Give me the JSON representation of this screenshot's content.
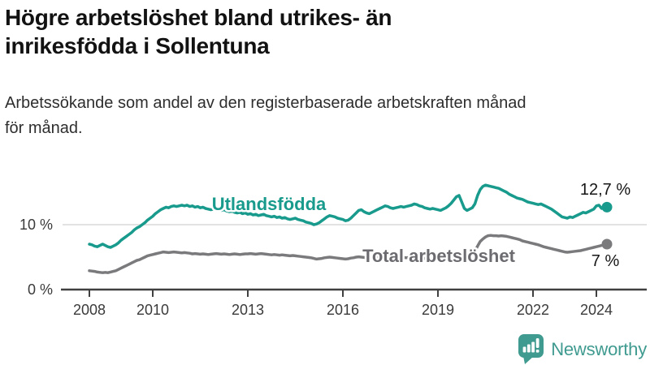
{
  "header": {
    "title_lines": [
      "Högre arbetslöshet bland utrikes- än",
      "inrikesfödda i Sollentuna"
    ],
    "subtitle_lines": [
      "Arbetssökande som andel av den registerbaserade arbetskraften månad",
      "för månad."
    ]
  },
  "footer": {
    "brand": "Newsworthy"
  },
  "colors": {
    "teal": "#189a8c",
    "gray": "#7a7a7d",
    "gray_label": "#6b6b70",
    "brand_teal": "#3f9a8f"
  },
  "chart_data": {
    "type": "line",
    "title": "Högre arbetslöshet bland utrikes- än inrikesfödda i Sollentuna",
    "subtitle": "Arbetssökande som andel av den registerbaserade arbetskraften månad för månad.",
    "xlabel": "",
    "ylabel": "",
    "x_unit": "year-month",
    "x_start_year": 2008,
    "x_step_months": 1,
    "xlim": [
      2008,
      2024.4
    ],
    "ylim": [
      0,
      19
    ],
    "grid_values": [
      10
    ],
    "x_ticks": [
      {
        "year": 2008,
        "label": "2008"
      },
      {
        "year": 2010,
        "label": "2010"
      },
      {
        "year": 2013,
        "label": "2013"
      },
      {
        "year": 2016,
        "label": "2016"
      },
      {
        "year": 2019,
        "label": "2019"
      },
      {
        "year": 2022,
        "label": "2022"
      },
      {
        "year": 2024,
        "label": "2024"
      }
    ],
    "y_ticks": [
      {
        "value": 0,
        "label": "0 %"
      },
      {
        "value": 10,
        "label": "10 %"
      }
    ],
    "series": [
      {
        "id": "utlandsfodda",
        "name": "Utlandsfödda",
        "color": "#189a8c",
        "label_color": "#189a8c",
        "end_value": 12.7,
        "end_label": "12,7 %",
        "values": [
          7.0,
          6.9,
          6.7,
          6.6,
          6.8,
          7.0,
          6.8,
          6.6,
          6.5,
          6.7,
          6.9,
          7.2,
          7.6,
          7.9,
          8.2,
          8.5,
          8.8,
          9.2,
          9.5,
          9.7,
          10.0,
          10.3,
          10.7,
          11.0,
          11.3,
          11.7,
          12.0,
          12.3,
          12.5,
          12.7,
          12.6,
          12.8,
          12.9,
          12.8,
          12.9,
          13.0,
          12.9,
          13.0,
          12.8,
          12.9,
          12.7,
          12.8,
          12.6,
          12.7,
          12.5,
          12.4,
          12.3,
          12.4,
          12.5,
          12.3,
          12.2,
          12.3,
          12.1,
          12.0,
          12.1,
          11.9,
          11.8,
          11.9,
          11.7,
          11.8,
          11.6,
          11.7,
          11.5,
          11.6,
          11.4,
          11.5,
          11.6,
          11.4,
          11.3,
          11.2,
          11.3,
          11.1,
          11.2,
          11.0,
          11.1,
          10.9,
          10.8,
          10.9,
          11.0,
          10.8,
          10.7,
          10.6,
          10.4,
          10.3,
          10.2,
          10.0,
          10.1,
          10.3,
          10.6,
          10.9,
          11.2,
          11.4,
          11.3,
          11.2,
          11.0,
          10.9,
          10.8,
          10.6,
          10.7,
          11.0,
          11.4,
          11.8,
          12.2,
          12.3,
          12.0,
          11.8,
          11.7,
          11.9,
          12.1,
          12.3,
          12.5,
          12.7,
          12.9,
          12.8,
          12.6,
          12.5,
          12.6,
          12.7,
          12.8,
          12.7,
          12.8,
          12.9,
          13.0,
          13.2,
          13.1,
          12.9,
          12.8,
          12.6,
          12.5,
          12.4,
          12.5,
          12.4,
          12.3,
          12.2,
          12.4,
          12.6,
          12.9,
          13.3,
          13.8,
          14.3,
          14.5,
          13.5,
          12.5,
          12.2,
          12.4,
          12.6,
          13.2,
          14.5,
          15.4,
          15.9,
          16.1,
          16.0,
          15.9,
          15.8,
          15.7,
          15.6,
          15.4,
          15.2,
          15.0,
          14.7,
          14.5,
          14.3,
          14.1,
          14.0,
          13.9,
          13.7,
          13.5,
          13.4,
          13.3,
          13.2,
          13.1,
          13.2,
          13.0,
          12.8,
          12.6,
          12.4,
          12.1,
          11.8,
          11.5,
          11.2,
          11.1,
          11.0,
          11.2,
          11.1,
          11.3,
          11.5,
          11.7,
          11.9,
          11.8,
          12.0,
          12.2,
          12.4,
          12.9,
          13.0,
          12.5,
          12.6,
          12.7
        ]
      },
      {
        "id": "total",
        "name": "Total arbetslöshet",
        "color": "#7a7a7d",
        "label_color": "#6b6b70",
        "end_value": 7.0,
        "end_label": "7 %",
        "values": [
          2.9,
          2.85,
          2.8,
          2.7,
          2.65,
          2.6,
          2.65,
          2.6,
          2.7,
          2.8,
          2.9,
          3.1,
          3.3,
          3.5,
          3.7,
          3.9,
          4.1,
          4.3,
          4.5,
          4.6,
          4.8,
          5.0,
          5.2,
          5.3,
          5.4,
          5.5,
          5.6,
          5.7,
          5.8,
          5.75,
          5.7,
          5.75,
          5.8,
          5.75,
          5.7,
          5.65,
          5.7,
          5.65,
          5.6,
          5.5,
          5.55,
          5.5,
          5.45,
          5.5,
          5.45,
          5.4,
          5.45,
          5.5,
          5.55,
          5.5,
          5.45,
          5.5,
          5.45,
          5.4,
          5.45,
          5.5,
          5.45,
          5.4,
          5.45,
          5.5,
          5.5,
          5.55,
          5.5,
          5.45,
          5.5,
          5.55,
          5.5,
          5.45,
          5.4,
          5.35,
          5.4,
          5.35,
          5.3,
          5.35,
          5.3,
          5.25,
          5.2,
          5.25,
          5.2,
          5.15,
          5.1,
          5.05,
          5.0,
          4.95,
          4.9,
          4.8,
          4.7,
          4.75,
          4.8,
          4.9,
          4.95,
          5.0,
          4.95,
          4.9,
          4.85,
          4.8,
          4.75,
          4.7,
          4.75,
          4.85,
          4.9,
          5.0,
          5.05,
          5.0,
          4.95,
          4.9,
          4.95,
          5.0,
          5.0,
          5.05,
          5.1,
          5.15,
          5.1,
          5.05,
          5.0,
          4.95,
          5.0,
          5.05,
          5.0,
          4.95,
          4.9,
          4.95,
          5.0,
          5.05,
          5.0,
          4.9,
          4.85,
          4.8,
          4.75,
          4.8,
          4.85,
          4.8,
          4.8,
          4.85,
          4.9,
          5.0,
          5.1,
          5.15,
          5.2,
          5.25,
          5.2,
          5.15,
          5.2,
          5.3,
          5.4,
          5.5,
          5.9,
          6.7,
          7.4,
          7.8,
          8.1,
          8.3,
          8.35,
          8.3,
          8.3,
          8.25,
          8.3,
          8.25,
          8.2,
          8.1,
          8.0,
          7.9,
          7.8,
          7.7,
          7.5,
          7.4,
          7.3,
          7.2,
          7.1,
          7.0,
          6.9,
          6.75,
          6.6,
          6.5,
          6.4,
          6.3,
          6.2,
          6.1,
          6.0,
          5.9,
          5.8,
          5.75,
          5.8,
          5.85,
          5.9,
          5.95,
          6.0,
          6.1,
          6.2,
          6.3,
          6.4,
          6.5,
          6.6,
          6.7,
          6.8,
          6.9,
          7.0
        ]
      }
    ],
    "legend_position": "inline-labels"
  }
}
